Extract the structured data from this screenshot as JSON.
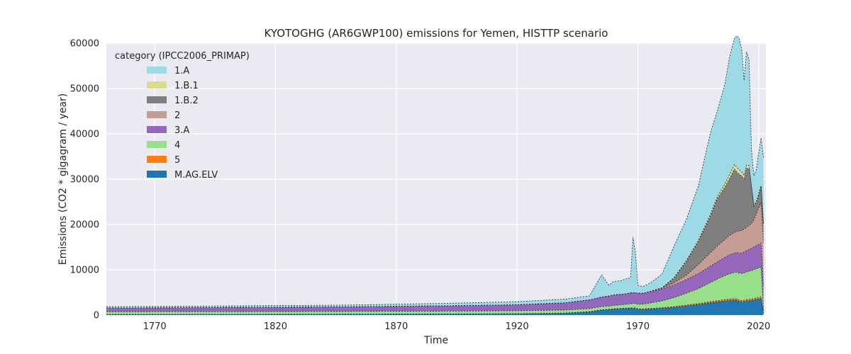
{
  "chart_data": {
    "type": "area",
    "stacked": true,
    "title": "KYOTOGHG (AR6GWP100) emissions for Yemen, HISTTP scenario",
    "xlabel": "Time",
    "ylabel": "Emissions (CO2 * gigagram / year)",
    "xlim": [
      1750,
      2023
    ],
    "ylim": [
      0,
      60000
    ],
    "xticks": [
      1770,
      1820,
      1870,
      1920,
      1970,
      2020
    ],
    "yticks": [
      0,
      10000,
      20000,
      30000,
      40000,
      50000,
      60000
    ],
    "grid": true,
    "legend": {
      "title": "category (IPCC2006_PRIMAP)",
      "placement": "top-left"
    },
    "x": [
      1750,
      1800,
      1850,
      1900,
      1920,
      1940,
      1950,
      1955,
      1958,
      1960,
      1963,
      1965,
      1967,
      1968,
      1969,
      1970,
      1972,
      1975,
      1980,
      1985,
      1990,
      1995,
      2000,
      2003,
      2006,
      2008,
      2010,
      2011,
      2012,
      2013,
      2014,
      2015,
      2016,
      2017,
      2018,
      2019,
      2020,
      2021,
      2022
    ],
    "series": [
      {
        "name": "M.AG.ELV",
        "color": "#1f77b4",
        "values": [
          120,
          140,
          180,
          230,
          280,
          400,
          700,
          1100,
          1200,
          1300,
          1400,
          1450,
          1500,
          1500,
          1450,
          1300,
          1250,
          1350,
          1500,
          1700,
          2000,
          2300,
          2700,
          2900,
          3100,
          3200,
          3300,
          3250,
          3000,
          2900,
          2950,
          3100,
          3150,
          3200,
          3300,
          3450,
          3550,
          3650,
          500
        ]
      },
      {
        "name": "5",
        "color": "#ff7f0e",
        "values": [
          30,
          30,
          30,
          40,
          40,
          50,
          60,
          70,
          70,
          80,
          80,
          80,
          80,
          90,
          90,
          90,
          100,
          110,
          130,
          160,
          190,
          220,
          260,
          280,
          300,
          310,
          320,
          320,
          310,
          300,
          300,
          310,
          320,
          320,
          330,
          340,
          350,
          360,
          100
        ]
      },
      {
        "name": "4",
        "color": "#98df8a",
        "values": [
          600,
          600,
          600,
          620,
          640,
          660,
          680,
          700,
          720,
          750,
          800,
          850,
          900,
          950,
          1000,
          1000,
          1050,
          1200,
          1500,
          2000,
          2600,
          3300,
          4200,
          4800,
          5300,
          5600,
          5800,
          5900,
          5950,
          6000,
          6050,
          6100,
          6200,
          6300,
          6400,
          6450,
          6500,
          6550,
          500
        ]
      },
      {
        "name": "3.A",
        "color": "#9467bd",
        "values": [
          800,
          900,
          1000,
          1200,
          1300,
          1600,
          1900,
          2100,
          2200,
          2300,
          2300,
          2300,
          2400,
          2400,
          2400,
          2400,
          2400,
          2500,
          2600,
          2800,
          3000,
          3300,
          3600,
          3800,
          4000,
          4200,
          4300,
          4350,
          4400,
          4500,
          4600,
          4700,
          4800,
          4900,
          5000,
          5100,
          5200,
          5300,
          5400
        ]
      },
      {
        "name": "2",
        "color": "#c49c94",
        "values": [
          0,
          0,
          0,
          0,
          0,
          0,
          0,
          0,
          0,
          0,
          0,
          0,
          0,
          0,
          0,
          0,
          0,
          50,
          200,
          500,
          1000,
          2000,
          3000,
          3500,
          4000,
          4300,
          4500,
          4700,
          4900,
          5000,
          5100,
          5200,
          5300,
          5500,
          6000,
          7000,
          8000,
          9000,
          9500
        ]
      },
      {
        "name": "1.B.2",
        "color": "#7f7f7f",
        "values": [
          0,
          0,
          0,
          0,
          0,
          0,
          0,
          0,
          0,
          0,
          0,
          0,
          0,
          0,
          0,
          0,
          0,
          0,
          100,
          1000,
          3000,
          5000,
          8000,
          10500,
          11500,
          12500,
          14000,
          13000,
          12500,
          12000,
          11000,
          13000,
          12500,
          8000,
          3000,
          2500,
          3000,
          3500,
          4000
        ]
      },
      {
        "name": "1.B.1",
        "color": "#dbdb8d",
        "values": [
          0,
          0,
          0,
          0,
          0,
          0,
          0,
          0,
          0,
          0,
          0,
          0,
          0,
          0,
          0,
          0,
          0,
          0,
          0,
          100,
          200,
          300,
          400,
          500,
          700,
          900,
          1000,
          1100,
          1000,
          900,
          800,
          700,
          700,
          400,
          200,
          200,
          200,
          200,
          200
        ]
      },
      {
        "name": "1.A",
        "color": "#9edae5",
        "values": [
          300,
          350,
          400,
          600,
          700,
          800,
          900,
          4900,
          2400,
          3000,
          3000,
          3300,
          3300,
          12200,
          9000,
          1800,
          1500,
          1800,
          3000,
          7000,
          9000,
          12000,
          18000,
          19000,
          22000,
          26000,
          28000,
          29000,
          29000,
          27000,
          21000,
          25000,
          23500,
          8000,
          6500,
          7000,
          9000,
          10500,
          14500
        ]
      }
    ]
  }
}
